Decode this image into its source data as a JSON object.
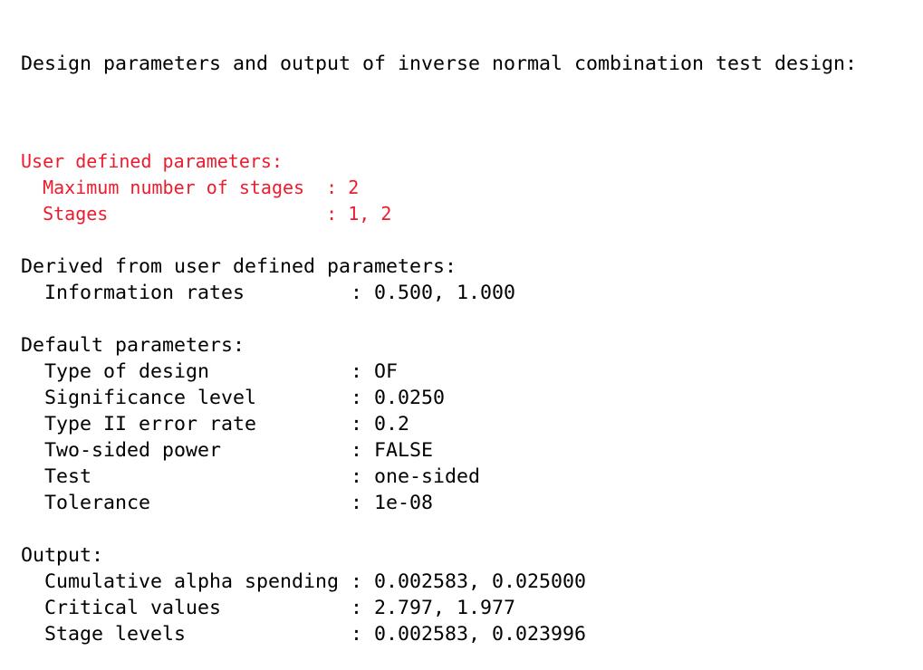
{
  "title_line": "Design parameters and output of inverse normal combination test design:",
  "format": {
    "indent": "  ",
    "separator": ": ",
    "label_pad": 26
  },
  "colors": {
    "text": "#000000",
    "message_red": "#ed1b2e",
    "background": "#ffffff"
  },
  "sections": [
    {
      "id": "user-defined",
      "header": "User defined parameters:",
      "style": "red",
      "rows": [
        {
          "label": "Maximum number of stages",
          "value": "2"
        },
        {
          "label": "Stages",
          "value": "1, 2"
        }
      ]
    },
    {
      "id": "derived",
      "header": "Derived from user defined parameters:",
      "style": "black",
      "rows": [
        {
          "label": "Information rates",
          "value": "0.500, 1.000"
        }
      ]
    },
    {
      "id": "default",
      "header": "Default parameters:",
      "style": "black",
      "rows": [
        {
          "label": "Type of design",
          "value": "OF"
        },
        {
          "label": "Significance level",
          "value": "0.0250"
        },
        {
          "label": "Type II error rate",
          "value": "0.2"
        },
        {
          "label": "Two-sided power",
          "value": "FALSE"
        },
        {
          "label": "Test",
          "value": "one-sided"
        },
        {
          "label": "Tolerance",
          "value": "1e-08"
        }
      ]
    },
    {
      "id": "output",
      "header": "Output:",
      "style": "black",
      "rows": [
        {
          "label": "Cumulative alpha spending",
          "value": "0.002583, 0.025000"
        },
        {
          "label": "Critical values",
          "value": "2.797, 1.977"
        },
        {
          "label": "Stage levels",
          "value": "0.002583, 0.023996"
        }
      ]
    }
  ]
}
